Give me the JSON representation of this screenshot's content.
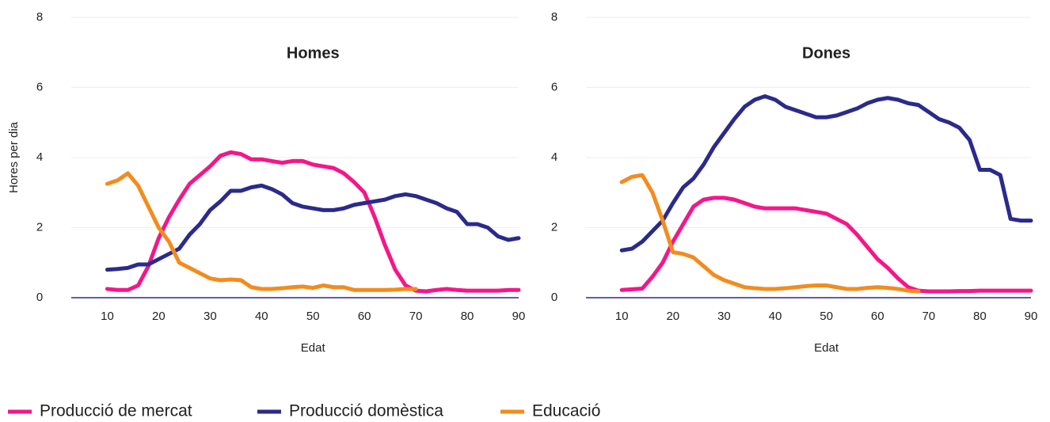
{
  "chart_data": [
    {
      "type": "line",
      "title": "Homes",
      "xlabel": "Edat",
      "ylabel": "Hores per dia",
      "x": [
        10,
        12,
        14,
        16,
        18,
        20,
        22,
        24,
        26,
        28,
        30,
        32,
        34,
        36,
        38,
        40,
        42,
        44,
        46,
        48,
        50,
        52,
        54,
        56,
        58,
        60,
        62,
        64,
        66,
        68,
        70,
        72,
        74,
        76,
        78,
        80,
        82,
        84,
        86,
        88,
        90
      ],
      "series": [
        {
          "name": "Producció de mercat",
          "color": "#f5168a",
          "values": [
            0.25,
            0.22,
            0.22,
            0.35,
            0.9,
            1.7,
            2.3,
            2.8,
            3.25,
            3.5,
            3.75,
            4.05,
            4.15,
            4.1,
            3.95,
            3.95,
            3.9,
            3.85,
            3.9,
            3.9,
            3.8,
            3.75,
            3.7,
            3.55,
            3.3,
            3.0,
            2.3,
            1.5,
            0.8,
            0.35,
            0.2,
            0.18,
            0.22,
            0.25,
            0.22,
            0.2,
            0.2,
            0.2,
            0.2,
            0.22,
            0.22
          ]
        },
        {
          "name": "Producció domèstica",
          "color": "#2b2a8c",
          "values": [
            0.8,
            0.82,
            0.85,
            0.95,
            0.95,
            1.1,
            1.25,
            1.4,
            1.8,
            2.1,
            2.5,
            2.75,
            3.05,
            3.05,
            3.15,
            3.2,
            3.1,
            2.95,
            2.7,
            2.6,
            2.55,
            2.5,
            2.5,
            2.55,
            2.65,
            2.7,
            2.75,
            2.8,
            2.9,
            2.95,
            2.9,
            2.8,
            2.7,
            2.55,
            2.45,
            2.1,
            2.1,
            2.0,
            1.75,
            1.65,
            1.7
          ]
        },
        {
          "name": "Educació",
          "color": "#f28c1e",
          "values": [
            3.25,
            3.35,
            3.55,
            3.2,
            2.6,
            2.0,
            1.6,
            1.0,
            0.85,
            0.7,
            0.55,
            0.5,
            0.52,
            0.5,
            0.3,
            0.25,
            0.25,
            0.27,
            0.3,
            0.32,
            0.28,
            0.35,
            0.3,
            0.3,
            0.22,
            0.22,
            0.22,
            0.22,
            0.23,
            0.25,
            0.25,
            null,
            null,
            null,
            null,
            null,
            null,
            null,
            null,
            null,
            null
          ]
        }
      ],
      "xlim": [
        3,
        90
      ],
      "ylim": [
        0,
        8
      ],
      "xticks": [
        10,
        20,
        30,
        40,
        50,
        60,
        70,
        80,
        90
      ],
      "yticks": [
        0,
        2,
        4,
        6,
        8
      ],
      "grid": true
    },
    {
      "type": "line",
      "title": "Dones",
      "xlabel": "Edat",
      "x": [
        10,
        12,
        14,
        16,
        18,
        20,
        22,
        24,
        26,
        28,
        30,
        32,
        34,
        36,
        38,
        40,
        42,
        44,
        46,
        48,
        50,
        52,
        54,
        56,
        58,
        60,
        62,
        64,
        66,
        68,
        70,
        72,
        74,
        76,
        78,
        80,
        82,
        84,
        86,
        88,
        90
      ],
      "series": [
        {
          "color": "#f5168a",
          "values": [
            0.22,
            0.24,
            0.26,
            0.6,
            1.0,
            1.6,
            2.1,
            2.6,
            2.8,
            2.85,
            2.85,
            2.8,
            2.7,
            2.6,
            2.55,
            2.55,
            2.55,
            2.55,
            2.5,
            2.45,
            2.4,
            2.25,
            2.1,
            1.8,
            1.45,
            1.1,
            0.85,
            0.55,
            0.3,
            0.2,
            0.18,
            0.18,
            0.18,
            0.19,
            0.19,
            0.2,
            0.2,
            0.2,
            0.2,
            0.2,
            0.2
          ]
        },
        {
          "color": "#2b2a8c",
          "values": [
            1.35,
            1.4,
            1.6,
            1.9,
            2.2,
            2.7,
            3.15,
            3.4,
            3.8,
            4.3,
            4.7,
            5.1,
            5.45,
            5.65,
            5.75,
            5.65,
            5.45,
            5.35,
            5.25,
            5.15,
            5.15,
            5.2,
            5.3,
            5.4,
            5.55,
            5.65,
            5.7,
            5.65,
            5.55,
            5.5,
            5.3,
            5.1,
            5.0,
            4.85,
            4.5,
            3.65,
            3.65,
            3.5,
            2.25,
            2.2,
            2.2
          ]
        },
        {
          "color": "#f28c1e",
          "values": [
            3.3,
            3.45,
            3.5,
            3.0,
            2.2,
            1.3,
            1.25,
            1.15,
            0.9,
            0.65,
            0.5,
            0.4,
            0.3,
            0.27,
            0.25,
            0.25,
            0.27,
            0.3,
            0.33,
            0.35,
            0.35,
            0.3,
            0.25,
            0.25,
            0.28,
            0.3,
            0.28,
            0.25,
            0.2,
            0.18,
            null,
            null,
            null,
            null,
            null,
            null,
            null,
            null,
            null,
            null,
            null
          ]
        }
      ],
      "xlim": [
        3,
        90
      ],
      "ylim": [
        0,
        8
      ],
      "xticks": [
        10,
        20,
        30,
        40,
        50,
        60,
        70,
        80,
        90
      ],
      "yticks": [
        0,
        2,
        4,
        6,
        8
      ],
      "grid": true
    }
  ]
}
